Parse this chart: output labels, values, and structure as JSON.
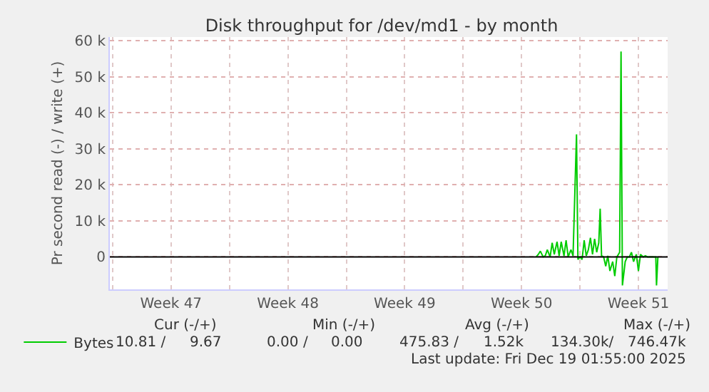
{
  "chart_data": {
    "type": "line",
    "title": "Disk throughput for /dev/md1 - by month",
    "ylabel": "Pr second read (-) / write (+)",
    "x": [
      "2025-12-12T09:00",
      "2025-12-12T12:00",
      "2025-12-12T15:00",
      "2025-12-12T19:00",
      "2025-12-12T22:00",
      "2025-12-13T01:00",
      "2025-12-13T05:00",
      "2025-12-13T08:00",
      "2025-12-13T11:00",
      "2025-12-13T15:00",
      "2025-12-13T18:00",
      "2025-12-13T21:00",
      "2025-12-14T01:00",
      "2025-12-14T04:00",
      "2025-12-14T07:00",
      "2025-12-14T11:00",
      "2025-12-14T14:00",
      "2025-12-14T19:00",
      "2025-12-14T21:00",
      "2025-12-15T00:00",
      "2025-12-15T03:00",
      "2025-12-15T06:00",
      "2025-12-15T09:00",
      "2025-12-15T12:00",
      "2025-12-15T15:00",
      "2025-12-15T18:00",
      "2025-12-15T21:00",
      "2025-12-16T00:00",
      "2025-12-16T03:00",
      "2025-12-16T05:00",
      "2025-12-16T07:00",
      "2025-12-16T10:00",
      "2025-12-16T13:00",
      "2025-12-16T16:00",
      "2025-12-16T19:00",
      "2025-12-16T23:00",
      "2025-12-17T02:00",
      "2025-12-17T05:00",
      "2025-12-17T09:00",
      "2025-12-17T11:00",
      "2025-12-17T13:00",
      "2025-12-17T17:00",
      "2025-12-17T20:00",
      "2025-12-17T23:00",
      "2025-12-18T02:00",
      "2025-12-18T05:00",
      "2025-12-18T09:00",
      "2025-12-18T12:00",
      "2025-12-18T15:00",
      "2025-12-18T19:00",
      "2025-12-18T22:00",
      "2025-12-19T01:00",
      "2025-12-19T13:00",
      "2025-12-19T14:00",
      "2025-12-19T16:00"
    ],
    "series": [
      {
        "name": "Bytes",
        "color": "#00cc00",
        "values": [
          0,
          700,
          1600,
          0,
          300,
          2000,
          0,
          3900,
          700,
          4200,
          300,
          4200,
          300,
          4600,
          0,
          2000,
          300,
          34000,
          -700,
          0,
          -700,
          4600,
          300,
          2000,
          5300,
          700,
          5000,
          1300,
          3900,
          13400,
          300,
          0,
          -2600,
          300,
          -3900,
          -1300,
          -5300,
          0,
          1300,
          57000,
          -7900,
          -1300,
          0,
          0,
          1300,
          -1300,
          700,
          -3900,
          700,
          0,
          300,
          0,
          0,
          -7900,
          0
        ]
      }
    ],
    "xlim": [
      "2025-11-16T20:00",
      "2025-12-20T06:00"
    ],
    "xticks": [
      {
        "value": "2025-11-17",
        "label": null
      },
      {
        "value": "2025-11-20T12:00",
        "label": "Week 47"
      },
      {
        "value": "2025-11-24",
        "label": null
      },
      {
        "value": "2025-11-27T12:00",
        "label": "Week 48"
      },
      {
        "value": "2025-12-01",
        "label": null
      },
      {
        "value": "2025-12-04T12:00",
        "label": "Week 49"
      },
      {
        "value": "2025-12-08",
        "label": null
      },
      {
        "value": "2025-12-11T12:00",
        "label": "Week 50"
      },
      {
        "value": "2025-12-15",
        "label": null
      },
      {
        "value": "2025-12-18T12:00",
        "label": "Week 51"
      }
    ],
    "ylim": [
      -9000,
      61000
    ],
    "yticks": [
      {
        "value": 0,
        "label": "0"
      },
      {
        "value": 10000,
        "label": "10 k"
      },
      {
        "value": 20000,
        "label": "20 k"
      },
      {
        "value": 30000,
        "label": "30 k"
      },
      {
        "value": 40000,
        "label": "40 k"
      },
      {
        "value": 50000,
        "label": "50 k"
      },
      {
        "value": 60000,
        "label": "60 k"
      }
    ],
    "grid": true,
    "legend": "bottom left",
    "marker": "none",
    "line_style": "solid",
    "ref_lines": [
      {
        "axis": "y",
        "value": 0,
        "color": "#000000"
      }
    ],
    "annotations": [
      "Cur (-/+)",
      "Min (-/+)",
      "Avg (-/+)",
      "Max (-/+)",
      "10.81 /",
      "9.67",
      "0.00 /",
      "0.00",
      "475.83 /",
      "1.52k",
      "134.30k/",
      "746.47k",
      "Last update: Fri Dec 19 01:55:00 2025"
    ]
  }
}
